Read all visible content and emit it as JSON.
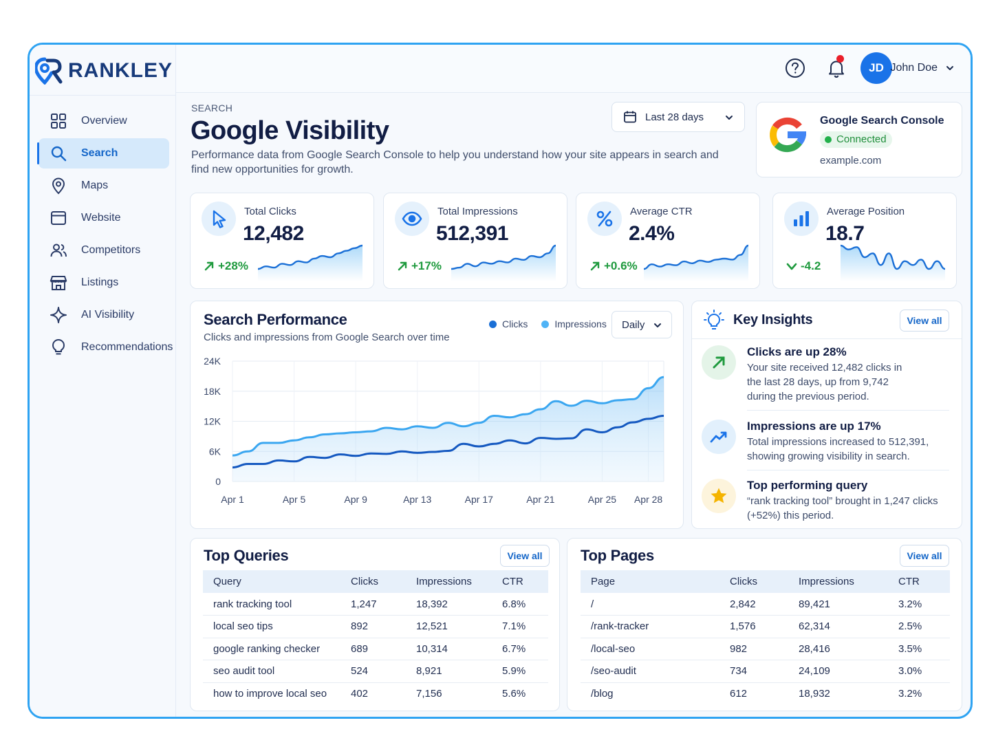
{
  "brand": {
    "name": "RANKLEY",
    "primary": "#1a73e8",
    "frame": "#2ea3f2"
  },
  "sidebar": {
    "items": [
      {
        "label": "Overview",
        "icon": "grid-icon",
        "active": false
      },
      {
        "label": "Search",
        "icon": "search-icon",
        "active": true
      },
      {
        "label": "Maps",
        "icon": "map-pin-icon",
        "active": false
      },
      {
        "label": "Website",
        "icon": "browser-icon",
        "active": false
      },
      {
        "label": "Competitors",
        "icon": "users-icon",
        "active": false
      },
      {
        "label": "Listings",
        "icon": "storefront-icon",
        "active": false
      },
      {
        "label": "AI Visibility",
        "icon": "sparkle-icon",
        "active": false
      },
      {
        "label": "Recommendations",
        "icon": "lightbulb-icon",
        "active": false
      }
    ]
  },
  "header": {
    "user": {
      "initials": "JD",
      "name": "John Doe"
    },
    "has_notification": true
  },
  "page": {
    "breadcrumb": "SEARCH",
    "title": "Google Visibility",
    "description": "Performance data from Google Search Console to help you understand how your site appears in search and find new opportunities for growth.",
    "date_range": "Last 28 days"
  },
  "gsc": {
    "title": "Google Search Console",
    "status": "Connected",
    "site": "example.com"
  },
  "kpis": [
    {
      "label": "Total Clicks",
      "value": "12,482",
      "delta": "+28%",
      "trend": "up",
      "icon": "cursor-icon",
      "spark": [
        2,
        3,
        2.5,
        4,
        3.5,
        5,
        4.5,
        6,
        7,
        6.5,
        8,
        9,
        10,
        11
      ]
    },
    {
      "label": "Total Impressions",
      "value": "512,391",
      "delta": "+17%",
      "trend": "up",
      "icon": "eye-icon",
      "spark": [
        2,
        2.5,
        4,
        3,
        4.5,
        4,
        5,
        4.5,
        6,
        5.5,
        7,
        6.5,
        8,
        11
      ]
    },
    {
      "label": "Average CTR",
      "value": "2.4%",
      "delta": "+0.6%",
      "trend": "up",
      "icon": "percent-icon",
      "spark": [
        4,
        5,
        4.5,
        5,
        4.8,
        5.6,
        5.2,
        5.8,
        5.5,
        6,
        6.2,
        6,
        7,
        9
      ]
    },
    {
      "label": "Average Position",
      "value": "18.7",
      "delta": "-4.2",
      "trend": "down",
      "icon": "bar-chart-icon",
      "spark": [
        8,
        7.5,
        7.8,
        6.5,
        7,
        5.5,
        7,
        5,
        6,
        5.5,
        6.2,
        5,
        6,
        5
      ]
    }
  ],
  "performance": {
    "title": "Search Performance",
    "subtitle": "Clicks and impressions from Google Search over time",
    "granularity": "Daily",
    "legend": [
      {
        "name": "Clicks",
        "color": "#1a6fd6"
      },
      {
        "name": "Impressions",
        "color": "#4fb3f6"
      }
    ]
  },
  "chart_data": {
    "type": "area",
    "x": [
      "Apr 1",
      "Apr 2",
      "Apr 3",
      "Apr 4",
      "Apr 5",
      "Apr 6",
      "Apr 7",
      "Apr 8",
      "Apr 9",
      "Apr 10",
      "Apr 11",
      "Apr 12",
      "Apr 13",
      "Apr 14",
      "Apr 15",
      "Apr 16",
      "Apr 17",
      "Apr 18",
      "Apr 19",
      "Apr 20",
      "Apr 21",
      "Apr 22",
      "Apr 23",
      "Apr 24",
      "Apr 25",
      "Apr 26",
      "Apr 27",
      "Apr 28",
      "Apr 29"
    ],
    "x_ticks": [
      "Apr 1",
      "Apr 5",
      "Apr 9",
      "Apr 13",
      "Apr 17",
      "Apr 21",
      "Apr 25",
      "Apr 28"
    ],
    "y_ticks": [
      "0",
      "6K",
      "12K",
      "18K",
      "24K"
    ],
    "ylim": [
      0,
      24000
    ],
    "grid": true,
    "legend_position": "top-right",
    "series": [
      {
        "name": "Impressions",
        "values": [
          5200,
          6000,
          7700,
          7700,
          8200,
          8800,
          9400,
          9600,
          9800,
          10000,
          10700,
          10400,
          11000,
          10700,
          11700,
          11000,
          11700,
          13100,
          12800,
          13400,
          14400,
          16000,
          15100,
          16100,
          15600,
          16200,
          16400,
          18600,
          20800
        ]
      },
      {
        "name": "Clicks",
        "values": [
          2800,
          3500,
          3500,
          4200,
          4000,
          4900,
          4700,
          5400,
          5100,
          5600,
          5500,
          6000,
          5700,
          5900,
          6100,
          7500,
          7000,
          7500,
          8200,
          7600,
          8700,
          8500,
          8600,
          10400,
          9800,
          10800,
          11800,
          12500,
          13100
        ]
      }
    ]
  },
  "insights": {
    "title": "Key Insights",
    "view_all": "View all",
    "items": [
      {
        "title": "Clicks are up 28%",
        "text": "Your site received 12,482 clicks in the last 28 days, up from 9,742 during the previous period.",
        "icon": "arrow-up-right-icon"
      },
      {
        "title": "Impressions are up 17%",
        "text": "Total impressions increased to 512,391, showing growing visibility in search.",
        "icon": "trend-up-icon"
      },
      {
        "title": "Top performing query",
        "text": "“rank tracking tool” brought in 1,247 clicks (+52%) this period.",
        "icon": "star-icon"
      }
    ]
  },
  "top_queries": {
    "title": "Top Queries",
    "view_all": "View all",
    "columns": [
      "Query",
      "Clicks",
      "Impressions",
      "CTR"
    ],
    "rows": [
      [
        "rank tracking tool",
        "1,247",
        "18,392",
        "6.8%"
      ],
      [
        "local seo tips",
        "892",
        "12,521",
        "7.1%"
      ],
      [
        "google ranking checker",
        "689",
        "10,314",
        "6.7%"
      ],
      [
        "seo audit tool",
        "524",
        "8,921",
        "5.9%"
      ],
      [
        "how to improve local seo",
        "402",
        "7,156",
        "5.6%"
      ]
    ]
  },
  "top_pages": {
    "title": "Top Pages",
    "view_all": "View all",
    "columns": [
      "Page",
      "Clicks",
      "Impressions",
      "CTR"
    ],
    "rows": [
      [
        "/",
        "2,842",
        "89,421",
        "3.2%"
      ],
      [
        "/rank-tracker",
        "1,576",
        "62,314",
        "2.5%"
      ],
      [
        "/local-seo",
        "982",
        "28,416",
        "3.5%"
      ],
      [
        "/seo-audit",
        "734",
        "24,109",
        "3.0%"
      ],
      [
        "/blog",
        "612",
        "18,932",
        "3.2%"
      ]
    ]
  }
}
